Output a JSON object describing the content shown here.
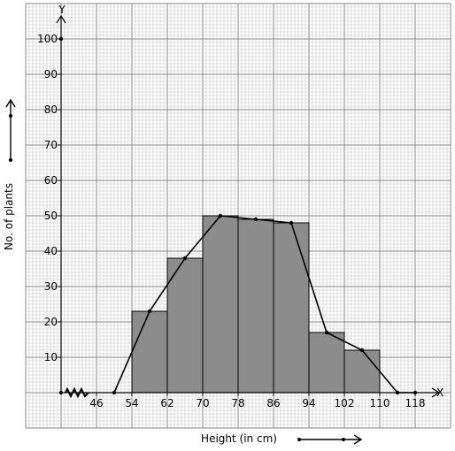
{
  "chart_data": {
    "type": "bar",
    "subtype": "histogram-with-frequency-polygon",
    "xlabel": "Height (in cm)",
    "ylabel": "No. of plants",
    "x_axis_letter": "X",
    "y_axis_letter": "Y",
    "x_ticks": [
      "46",
      "54",
      "62",
      "70",
      "78",
      "86",
      "94",
      "102",
      "110",
      "118"
    ],
    "y_ticks": [
      "10",
      "20",
      "30",
      "40",
      "50",
      "60",
      "70",
      "80",
      "90",
      "100"
    ],
    "ylim": [
      0,
      100
    ],
    "axis_break": true,
    "grid": true,
    "bars": [
      {
        "from": 54,
        "to": 62,
        "value": 23
      },
      {
        "from": 62,
        "to": 70,
        "value": 38
      },
      {
        "from": 70,
        "to": 78,
        "value": 50
      },
      {
        "from": 78,
        "to": 86,
        "value": 49
      },
      {
        "from": 86,
        "to": 94,
        "value": 48
      },
      {
        "from": 94,
        "to": 102,
        "value": 17
      },
      {
        "from": 102,
        "to": 110,
        "value": 12
      }
    ],
    "polygon": [
      {
        "x": 50,
        "y": 0
      },
      {
        "x": 58,
        "y": 23
      },
      {
        "x": 66,
        "y": 38
      },
      {
        "x": 74,
        "y": 50
      },
      {
        "x": 82,
        "y": 49
      },
      {
        "x": 90,
        "y": 48
      },
      {
        "x": 98,
        "y": 17
      },
      {
        "x": 106,
        "y": 12
      },
      {
        "x": 114,
        "y": 0
      },
      {
        "x": 118,
        "y": 0
      }
    ],
    "colors": {
      "bar_fill": "#8c8c8c",
      "bar_stroke": "#000000",
      "grid_minor": "#c8c8c8",
      "grid_major": "#8a8a8a",
      "line": "#000000"
    }
  }
}
